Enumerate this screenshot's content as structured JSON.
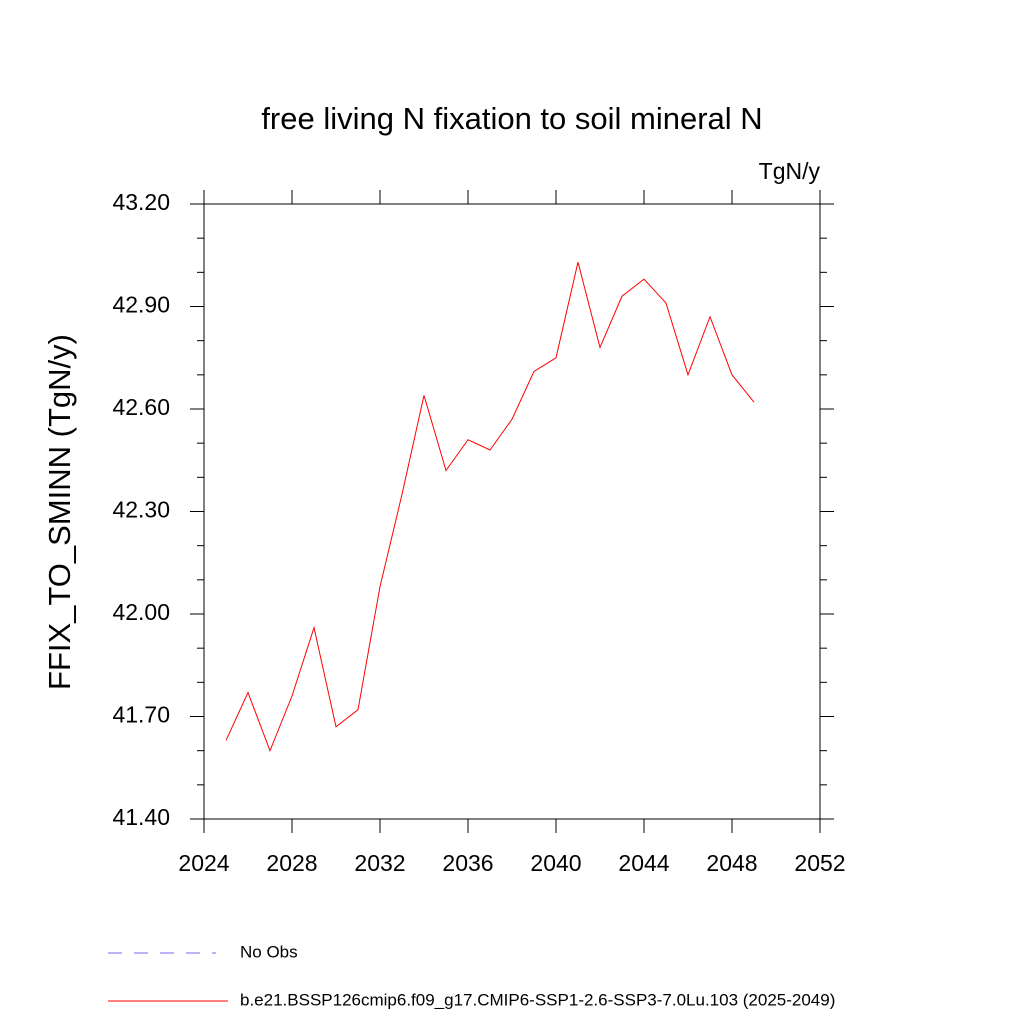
{
  "chart_data": {
    "type": "line",
    "title": "free living N fixation to soil mineral N",
    "units": "TgN/y",
    "ylabel": "FFIX_TO_SMINN  (TgN/y)",
    "x": [
      2025,
      2026,
      2027,
      2028,
      2029,
      2030,
      2031,
      2032,
      2033,
      2034,
      2035,
      2036,
      2037,
      2038,
      2039,
      2040,
      2041,
      2042,
      2043,
      2044,
      2045,
      2046,
      2047,
      2048,
      2049
    ],
    "series": [
      {
        "name": "b.e21.BSSP126cmip6.f09_g17.CMIP6-SSP1-2.6-SSP3-7.0Lu.103 (2025-2049)",
        "color": "#ff0000",
        "values": [
          41.63,
          41.77,
          41.6,
          41.76,
          41.96,
          41.67,
          41.72,
          42.08,
          42.35,
          42.64,
          42.42,
          42.51,
          42.48,
          42.57,
          42.71,
          42.75,
          43.03,
          42.78,
          42.93,
          42.98,
          42.91,
          42.7,
          42.87,
          42.7,
          42.62
        ]
      }
    ],
    "obs_legend": {
      "name": "No Obs",
      "color": "#7b68ee",
      "style": "dashed"
    },
    "xlim": [
      2024,
      2052
    ],
    "xticks": [
      2024,
      2028,
      2032,
      2036,
      2040,
      2044,
      2048,
      2052
    ],
    "ylim": [
      41.4,
      43.2
    ],
    "yticks": [
      {
        "value": 41.4,
        "label": "41.40"
      },
      {
        "value": 41.7,
        "label": "41.70"
      },
      {
        "value": 42.0,
        "label": "42.00"
      },
      {
        "value": 42.3,
        "label": "42.30"
      },
      {
        "value": 42.6,
        "label": "42.60"
      },
      {
        "value": 42.9,
        "label": "42.90"
      },
      {
        "value": 43.2,
        "label": "43.20"
      }
    ],
    "yminorticks": [
      41.5,
      41.6,
      41.8,
      41.9,
      42.1,
      42.2,
      42.4,
      42.5,
      42.7,
      42.8,
      43.0,
      43.1
    ],
    "grid": false
  }
}
